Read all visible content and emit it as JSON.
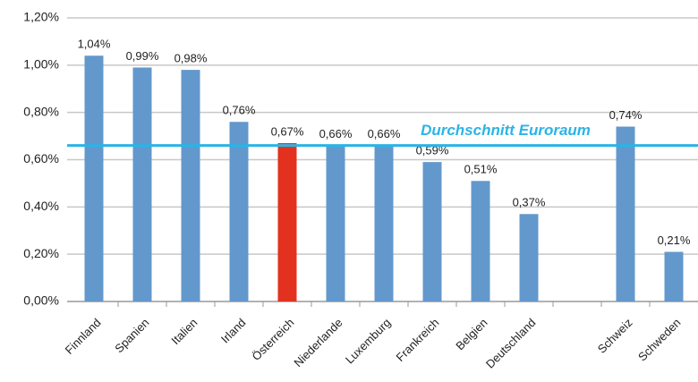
{
  "chart_data": {
    "type": "bar",
    "categories": [
      "Finnland",
      "Spanien",
      "Italien",
      "Irland",
      "Österreich",
      "Niederlande",
      "Luxemburg",
      "Frankreich",
      "Belgien",
      "Deutschland",
      null,
      "Schweiz",
      "Schweden"
    ],
    "values": [
      1.04,
      0.99,
      0.98,
      0.76,
      0.67,
      0.66,
      0.66,
      0.59,
      0.51,
      0.37,
      null,
      0.74,
      0.21
    ],
    "value_labels": [
      "1,04%",
      "0,99%",
      "0,98%",
      "0,76%",
      "0,67%",
      "0,66%",
      "0,66%",
      "0,59%",
      "0,51%",
      "0,37%",
      null,
      "0,74%",
      "0,21%"
    ],
    "colors": [
      "#6398cc",
      "#6398cc",
      "#6398cc",
      "#6398cc",
      "#e2321f",
      "#6398cc",
      "#6398cc",
      "#6398cc",
      "#6398cc",
      "#6398cc",
      null,
      "#6398cc",
      "#6398cc"
    ],
    "ylim": [
      0,
      1.2
    ],
    "yticks": [
      {
        "value": 0,
        "label": "0,00%"
      },
      {
        "value": 0.2,
        "label": "0,20%"
      },
      {
        "value": 0.4,
        "label": "0,40%"
      },
      {
        "value": 0.6,
        "label": "0,60%"
      },
      {
        "value": 0.8,
        "label": "0,80%"
      },
      {
        "value": 1.0,
        "label": "1,00%"
      },
      {
        "value": 1.2,
        "label": "1,20%"
      }
    ],
    "grid": true,
    "reference_line": {
      "value": 0.66,
      "label": "Durchschnitt Euroraum",
      "color": "#2ab4e6"
    }
  }
}
